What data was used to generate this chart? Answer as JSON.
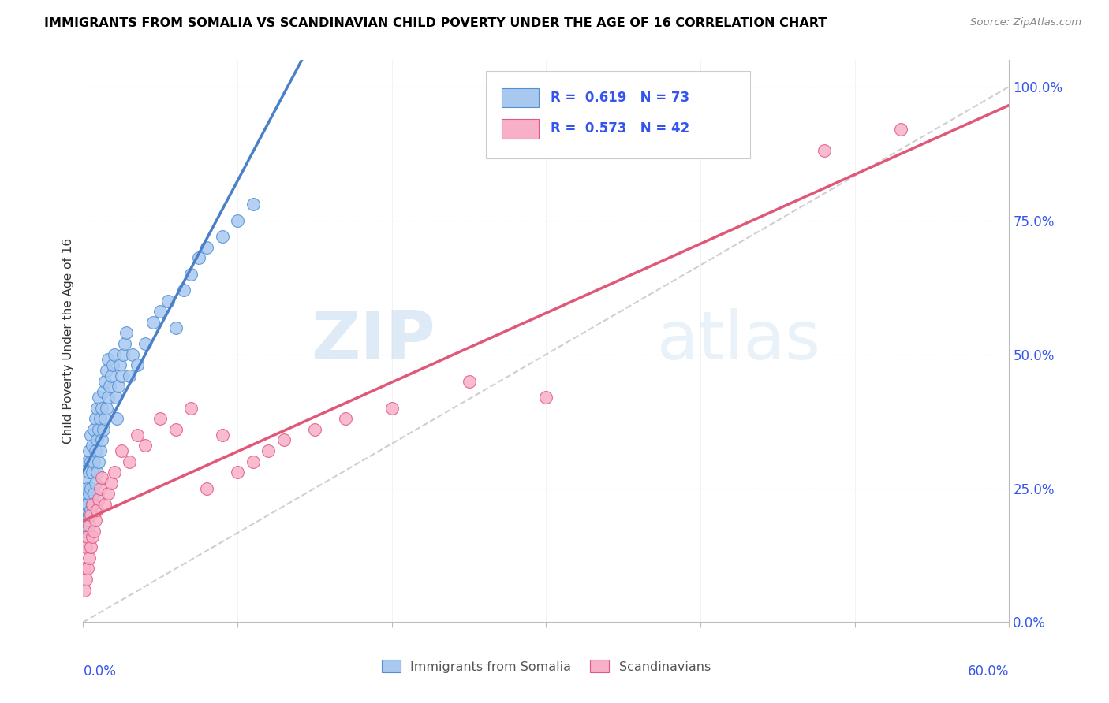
{
  "title": "IMMIGRANTS FROM SOMALIA VS SCANDINAVIAN CHILD POVERTY UNDER THE AGE OF 16 CORRELATION CHART",
  "source": "Source: ZipAtlas.com",
  "ylabel_label": "Child Poverty Under the Age of 16",
  "blue_R": 0.619,
  "blue_N": 73,
  "pink_R": 0.573,
  "pink_N": 42,
  "blue_color": "#A8C8F0",
  "pink_color": "#F8B0C8",
  "blue_edge_color": "#5090D0",
  "pink_edge_color": "#E05880",
  "blue_line_color": "#4A80C8",
  "pink_line_color": "#E05878",
  "right_tick_color": "#3355EE",
  "legend_blue_label": "Immigrants from Somalia",
  "legend_pink_label": "Scandinavians",
  "watermark_text": "ZIPatlas",
  "xlim": [
    0.0,
    0.6
  ],
  "ylim": [
    0.0,
    1.05
  ],
  "blue_x": [
    0.001,
    0.001,
    0.001,
    0.002,
    0.002,
    0.002,
    0.002,
    0.003,
    0.003,
    0.003,
    0.003,
    0.004,
    0.004,
    0.004,
    0.004,
    0.005,
    0.005,
    0.005,
    0.005,
    0.006,
    0.006,
    0.006,
    0.007,
    0.007,
    0.007,
    0.008,
    0.008,
    0.008,
    0.009,
    0.009,
    0.009,
    0.01,
    0.01,
    0.01,
    0.011,
    0.011,
    0.012,
    0.012,
    0.013,
    0.013,
    0.014,
    0.014,
    0.015,
    0.015,
    0.016,
    0.016,
    0.017,
    0.018,
    0.019,
    0.02,
    0.021,
    0.022,
    0.023,
    0.024,
    0.025,
    0.026,
    0.027,
    0.028,
    0.03,
    0.032,
    0.035,
    0.04,
    0.045,
    0.05,
    0.055,
    0.06,
    0.065,
    0.07,
    0.075,
    0.08,
    0.09,
    0.1,
    0.11
  ],
  "blue_y": [
    0.17,
    0.19,
    0.22,
    0.18,
    0.2,
    0.24,
    0.27,
    0.19,
    0.22,
    0.25,
    0.3,
    0.2,
    0.24,
    0.28,
    0.32,
    0.21,
    0.25,
    0.3,
    0.35,
    0.22,
    0.28,
    0.33,
    0.24,
    0.3,
    0.36,
    0.26,
    0.32,
    0.38,
    0.28,
    0.34,
    0.4,
    0.3,
    0.36,
    0.42,
    0.32,
    0.38,
    0.34,
    0.4,
    0.36,
    0.43,
    0.38,
    0.45,
    0.4,
    0.47,
    0.42,
    0.49,
    0.44,
    0.46,
    0.48,
    0.5,
    0.42,
    0.38,
    0.44,
    0.48,
    0.46,
    0.5,
    0.52,
    0.54,
    0.46,
    0.5,
    0.48,
    0.52,
    0.56,
    0.58,
    0.6,
    0.55,
    0.62,
    0.65,
    0.68,
    0.7,
    0.72,
    0.75,
    0.78
  ],
  "pink_x": [
    0.001,
    0.001,
    0.002,
    0.002,
    0.003,
    0.003,
    0.004,
    0.004,
    0.005,
    0.005,
    0.006,
    0.006,
    0.007,
    0.008,
    0.009,
    0.01,
    0.011,
    0.012,
    0.014,
    0.016,
    0.018,
    0.02,
    0.025,
    0.03,
    0.035,
    0.04,
    0.05,
    0.06,
    0.07,
    0.08,
    0.09,
    0.1,
    0.11,
    0.12,
    0.13,
    0.15,
    0.17,
    0.2,
    0.25,
    0.3,
    0.48,
    0.53
  ],
  "pink_y": [
    0.06,
    0.1,
    0.08,
    0.14,
    0.1,
    0.16,
    0.12,
    0.18,
    0.14,
    0.2,
    0.16,
    0.22,
    0.17,
    0.19,
    0.21,
    0.23,
    0.25,
    0.27,
    0.22,
    0.24,
    0.26,
    0.28,
    0.32,
    0.3,
    0.35,
    0.33,
    0.38,
    0.36,
    0.4,
    0.25,
    0.35,
    0.28,
    0.3,
    0.32,
    0.34,
    0.36,
    0.38,
    0.4,
    0.45,
    0.42,
    0.88,
    0.92
  ]
}
